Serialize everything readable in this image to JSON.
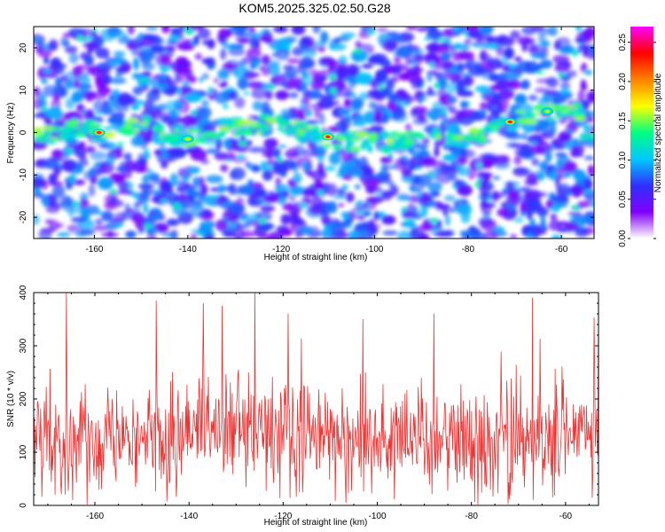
{
  "chart_data": [
    {
      "type": "heatmap",
      "title": "KOM5.2025.325.02.50.G28",
      "xlabel": "Height of straight line (km)",
      "ylabel": "Frequency (Hz)",
      "xlim": [
        -173,
        -53
      ],
      "ylim": [
        -25,
        25
      ],
      "xticks": [
        "-160",
        "-140",
        "-120",
        "-100",
        "-80",
        "-60"
      ],
      "xtick_values": [
        -160,
        -140,
        -120,
        -100,
        -80,
        -60
      ],
      "yticks": [
        "-20",
        "-10",
        "0",
        "10",
        "20"
      ],
      "ytick_values": [
        -20,
        -10,
        0,
        10,
        20
      ],
      "colorbar": {
        "label": "Normalized spectral amplitude",
        "range": [
          0,
          0.27
        ],
        "ticks": [
          "0.00",
          "0.05",
          "0.10",
          "0.15",
          "0.20",
          "0.25"
        ],
        "tick_values": [
          0,
          0.05,
          0.1,
          0.15,
          0.2,
          0.25
        ],
        "colors": [
          "#ffffff",
          "#8000ff",
          "#3030ff",
          "#00c8ff",
          "#00ff80",
          "#ffff00",
          "#ff8000",
          "#ff0000",
          "#ff00ff"
        ]
      },
      "ridge": [
        {
          "x": -173,
          "f": -1.5
        },
        {
          "x": -165,
          "f": 1.0
        },
        {
          "x": -158,
          "f": 0.0
        },
        {
          "x": -150,
          "f": 2.5
        },
        {
          "x": -145,
          "f": -1.0
        },
        {
          "x": -141,
          "f": -1.5
        },
        {
          "x": -130,
          "f": 1.5
        },
        {
          "x": -120,
          "f": 2.0
        },
        {
          "x": -112,
          "f": -1.0
        },
        {
          "x": -100,
          "f": -2.5
        },
        {
          "x": -90,
          "f": -1.5
        },
        {
          "x": -80,
          "f": -1.0
        },
        {
          "x": -74,
          "f": 1.0
        },
        {
          "x": -70,
          "f": 2.5
        },
        {
          "x": -64,
          "f": 5.0
        },
        {
          "x": -55,
          "f": 4.5
        }
      ],
      "hotspots": [
        {
          "x": -159,
          "f": 0.0,
          "amp": 0.26
        },
        {
          "x": -110,
          "f": -1.0,
          "amp": 0.25
        },
        {
          "x": -71,
          "f": 2.5,
          "amp": 0.25
        },
        {
          "x": -140,
          "f": -1.5,
          "amp": 0.18
        },
        {
          "x": -63,
          "f": 5.0,
          "amp": 0.17
        }
      ]
    },
    {
      "type": "line",
      "xlabel": "Height of straight line (km)",
      "ylabel": "SNR (10 * v/v)",
      "xlim": [
        -173,
        -53
      ],
      "ylim": [
        0,
        400
      ],
      "xticks": [
        "-160",
        "-140",
        "-120",
        "-100",
        "-80",
        "-60"
      ],
      "xtick_values": [
        -160,
        -140,
        -120,
        -100,
        -80,
        -60
      ],
      "yticks": [
        "0",
        "100",
        "200",
        "300",
        "400"
      ],
      "ytick_values": [
        0,
        100,
        200,
        300,
        400
      ],
      "series": [
        {
          "name": "SNR",
          "color": "#ee3333",
          "baseline": 130,
          "spread": 70,
          "samples": 900,
          "peaks": [
            {
              "x": -166,
              "y": 400
            },
            {
              "x": -126,
              "y": 400
            },
            {
              "x": -147,
              "y": 385
            },
            {
              "x": -137,
              "y": 380
            },
            {
              "x": -133,
              "y": 375
            },
            {
              "x": -67,
              "y": 390
            },
            {
              "x": -53,
              "y": 380
            },
            {
              "x": -88,
              "y": 360
            },
            {
              "x": -103,
              "y": 350
            },
            {
              "x": -119,
              "y": 360
            }
          ]
        }
      ]
    }
  ]
}
